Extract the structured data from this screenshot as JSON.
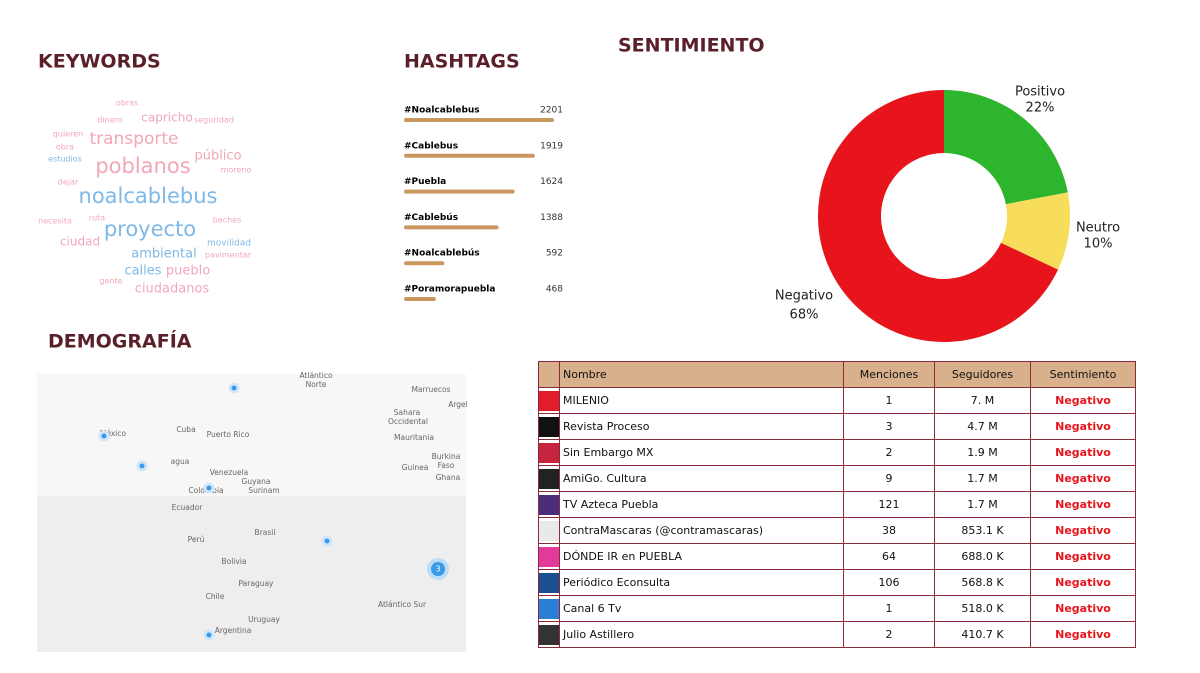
{
  "keywords": {
    "title": "KEYWORDS",
    "words": [
      "obras",
      "capricho",
      "dinero",
      "seguridad",
      "quieren",
      "transporte",
      "obra",
      "estudios",
      "público",
      "poblanos",
      "moreno",
      "dejar",
      "noalcablebus",
      "necesita",
      "ruta",
      "baches",
      "proyecto",
      "ciudad",
      "movilidad",
      "ambiental",
      "pavimentar",
      "calles",
      "pueblo",
      "gente",
      "ciudadanos"
    ]
  },
  "chart_data": [
    {
      "type": "hbar",
      "title": "HASHTAGS",
      "categories": [
        "#Noalcablebus",
        "#Cablebus",
        "#Puebla",
        "#Cablebús",
        "#Noalcablebús",
        "#Poramorapuebla"
      ],
      "values": [
        2201,
        1919,
        1624,
        1388,
        592,
        468
      ],
      "color": "#c9975f"
    },
    {
      "type": "donut",
      "title": "SENTIMIENTO",
      "categories": [
        "Positivo",
        "Neutro",
        "Negativo"
      ],
      "values": [
        22,
        10,
        68
      ],
      "value_labels": [
        "22%",
        "10%",
        "68%"
      ],
      "colors": [
        "#2eb52e",
        "#f8dc5c",
        "#e8141b"
      ]
    }
  ],
  "demografia": {
    "title": "DEMOGRAFÍA",
    "map_labels": [
      "Atlántico",
      "Norte",
      "Marruecos",
      "Sahara",
      "Occidental",
      "Mauritania",
      "Argel",
      "Burkina",
      "Faso",
      "Guinea",
      "Ghana",
      "México",
      "Cuba",
      "Puerto Rico",
      "agua",
      "Venezuela",
      "Guyana",
      "Surinam",
      "Colombia",
      "Ecuador",
      "Perú",
      "Brasil",
      "Bolivia",
      "Paraguay",
      "Chile",
      "Argentina",
      "Uruguay",
      "Atlántico Sur"
    ],
    "cluster_label": "3"
  },
  "table": {
    "header": [
      "Nombre",
      "Menciones",
      "Seguidores",
      "Sentimiento"
    ],
    "rows": [
      [
        "MILENIO",
        1,
        "7. M",
        "Negativo"
      ],
      [
        "Revista Proceso",
        3,
        "4.7 M",
        "Negativo"
      ],
      [
        "Sin Embargo MX",
        2,
        "1.9 M",
        "Negativo"
      ],
      [
        "AmiGo. Cultura",
        9,
        "1.7 M",
        "Negativo"
      ],
      [
        "TV Azteca Puebla",
        121,
        "1.7 M",
        "Negativo"
      ],
      [
        "ContraMascaras (@contramascaras)",
        38,
        "853.1 K",
        "Negativo"
      ],
      [
        "DÓNDE IR en PUEBLA",
        64,
        "688.0 K",
        "Negativo"
      ],
      [
        "Periódico Econsulta",
        106,
        "568.8 K",
        "Negativo"
      ],
      [
        "Canal 6 Tv",
        1,
        "518.0 K",
        "Negativo"
      ],
      [
        "Julio Astillero",
        2,
        "410.7 K",
        "Negativo"
      ]
    ]
  }
}
